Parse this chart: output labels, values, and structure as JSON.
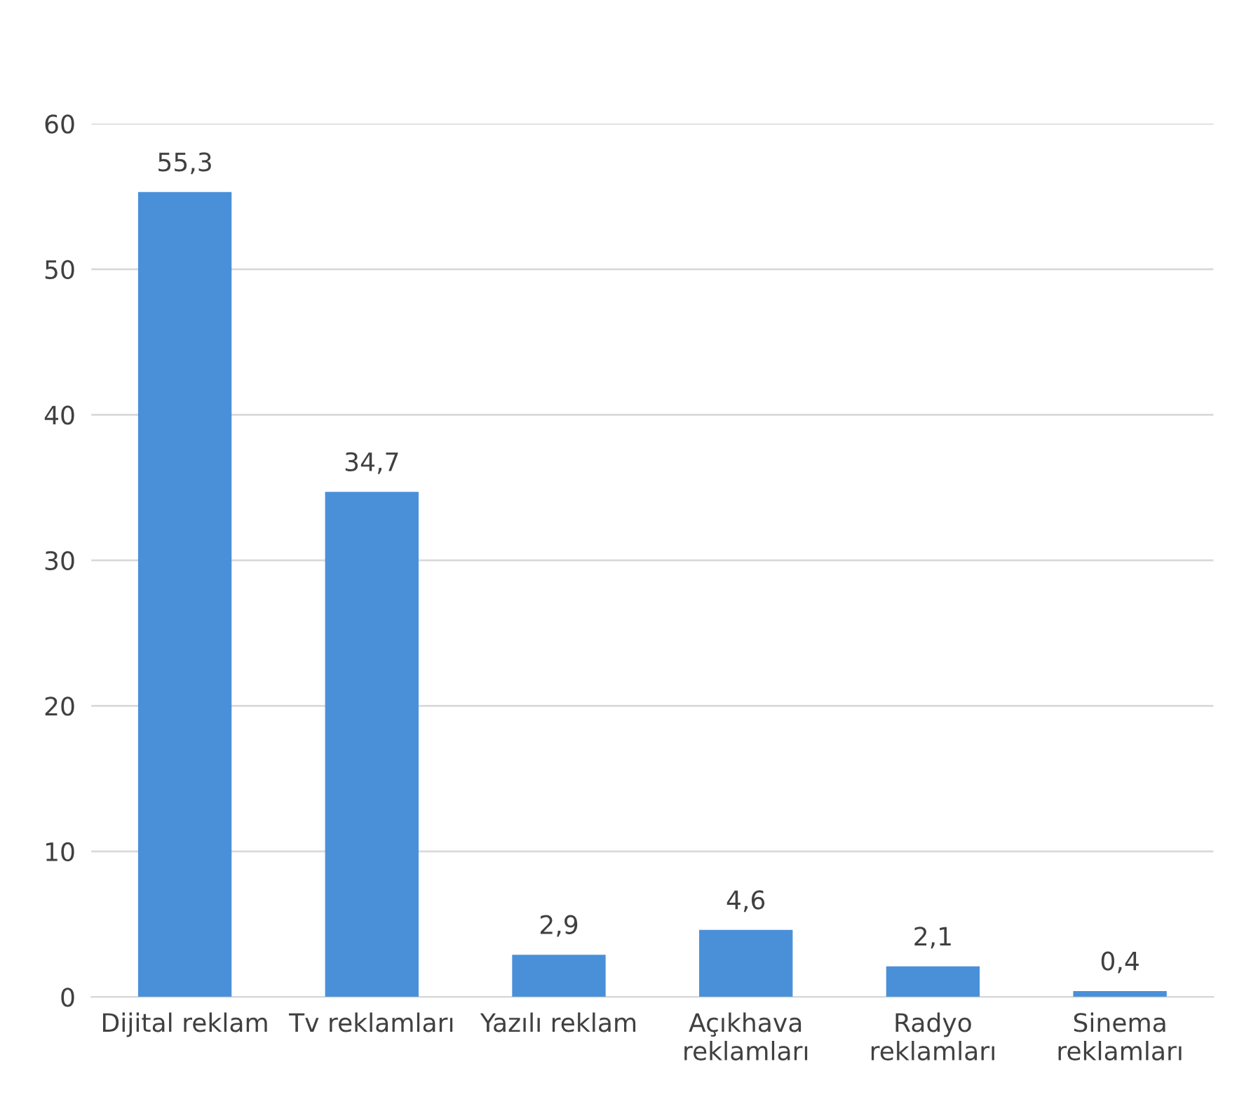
{
  "chart_data": {
    "type": "bar",
    "categories": [
      "Dijital reklam",
      "Tv reklamları",
      "Yazılı reklam",
      "Açıkhava\nreklamları",
      "Radyo\nreklamları",
      "Sinema\nreklamları"
    ],
    "values": [
      55.3,
      34.7,
      2.9,
      4.6,
      2.1,
      0.4
    ],
    "value_labels": [
      "55,3",
      "34,7",
      "2,9",
      "4,6",
      "2,1",
      "0,4"
    ],
    "color": "#4a90d9",
    "ylim": [
      0,
      60
    ],
    "yticks": [
      0,
      10,
      20,
      30,
      40,
      50,
      60
    ],
    "grid": "y"
  }
}
